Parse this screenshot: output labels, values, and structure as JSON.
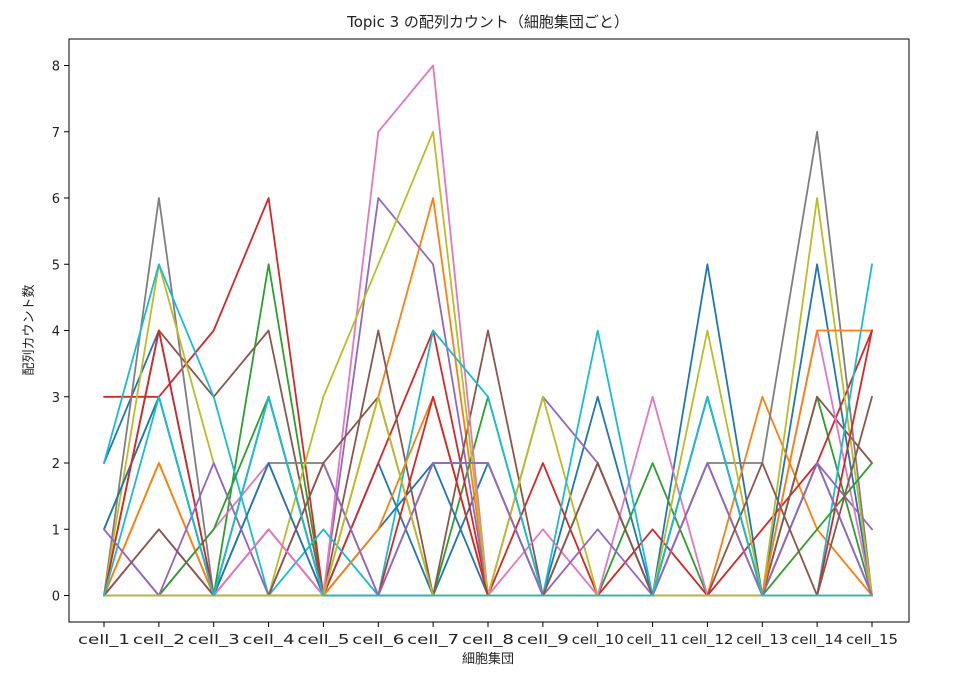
{
  "chart_data": {
    "type": "line",
    "title": "Topic 3 の配列カウント（細胞集団ごと）",
    "xlabel": "細胞集団",
    "ylabel": "配列カウント数",
    "categories": [
      "cell_1",
      "cell_2",
      "cell_3",
      "cell_4",
      "cell_5",
      "cell_6",
      "cell_7",
      "cell_8",
      "cell_9",
      "cell_10",
      "cell_11",
      "cell_12",
      "cell_13",
      "cell_14",
      "cell_15"
    ],
    "ylim": [
      -0.4,
      8.4
    ],
    "yticks": [
      0,
      1,
      2,
      3,
      4,
      5,
      6,
      7,
      8
    ],
    "grid": false,
    "legend": "none",
    "series": [
      {
        "color": "#1f77b4",
        "values": [
          2,
          4,
          0,
          3,
          0,
          2,
          0,
          2,
          0,
          3,
          0,
          5,
          0,
          5,
          0
        ]
      },
      {
        "color": "#ff7f0e",
        "values": [
          0,
          2,
          0,
          0,
          0,
          3,
          6,
          0,
          0,
          0,
          0,
          0,
          3,
          1,
          0
        ]
      },
      {
        "color": "#2ca02c",
        "values": [
          1,
          3,
          0,
          5,
          0,
          0,
          0,
          3,
          0,
          0,
          2,
          0,
          0,
          3,
          0
        ]
      },
      {
        "color": "#d62728",
        "values": [
          3,
          3,
          4,
          6,
          0,
          2,
          4,
          0,
          2,
          0,
          1,
          0,
          1,
          2,
          4
        ]
      },
      {
        "color": "#9467bd",
        "values": [
          0,
          1,
          0,
          3,
          0,
          6,
          5,
          0,
          3,
          2,
          0,
          3,
          0,
          2,
          1
        ]
      },
      {
        "color": "#8c564b",
        "values": [
          0,
          4,
          3,
          4,
          0,
          4,
          0,
          4,
          0,
          2,
          0,
          2,
          0,
          3,
          2
        ]
      },
      {
        "color": "#e377c2",
        "values": [
          1,
          0,
          1,
          2,
          0,
          7,
          8,
          0,
          1,
          0,
          3,
          0,
          0,
          4,
          0
        ]
      },
      {
        "color": "#7f7f7f",
        "values": [
          0,
          6,
          0,
          2,
          2,
          0,
          2,
          2,
          0,
          0,
          0,
          2,
          2,
          7,
          0
        ]
      },
      {
        "color": "#bcbd22",
        "values": [
          0,
          5,
          2,
          0,
          3,
          5,
          7,
          0,
          3,
          0,
          0,
          4,
          0,
          6,
          0
        ]
      },
      {
        "color": "#17becf",
        "values": [
          2,
          5,
          3,
          0,
          1,
          0,
          4,
          3,
          0,
          4,
          0,
          0,
          0,
          0,
          5
        ]
      },
      {
        "color": "#1f77b4",
        "values": [
          1,
          3,
          0,
          2,
          0,
          1,
          2,
          0,
          0,
          0,
          0,
          3,
          0,
          2,
          0
        ]
      },
      {
        "color": "#ff7f0e",
        "values": [
          0,
          2,
          0,
          0,
          0,
          1,
          3,
          0,
          0,
          0,
          0,
          0,
          0,
          4,
          4
        ]
      },
      {
        "color": "#2ca02c",
        "values": [
          0,
          0,
          1,
          3,
          0,
          0,
          0,
          0,
          0,
          0,
          0,
          0,
          0,
          1,
          2
        ]
      },
      {
        "color": "#d62728",
        "values": [
          0,
          4,
          0,
          1,
          0,
          0,
          3,
          0,
          0,
          0,
          0,
          0,
          0,
          0,
          4
        ]
      },
      {
        "color": "#9467bd",
        "values": [
          1,
          0,
          2,
          0,
          2,
          0,
          2,
          2,
          0,
          1,
          0,
          2,
          0,
          2,
          0
        ]
      },
      {
        "color": "#8c564b",
        "values": [
          0,
          1,
          0,
          0,
          2,
          3,
          0,
          0,
          0,
          2,
          0,
          0,
          2,
          0,
          3
        ]
      },
      {
        "color": "#e377c2",
        "values": [
          0,
          0,
          0,
          1,
          0,
          0,
          0,
          0,
          0,
          0,
          0,
          0,
          0,
          0,
          0
        ]
      },
      {
        "color": "#7f7f7f",
        "values": [
          0,
          0,
          0,
          0,
          0,
          0,
          0,
          0,
          0,
          0,
          0,
          0,
          0,
          0,
          0
        ]
      },
      {
        "color": "#bcbd22",
        "values": [
          0,
          0,
          0,
          0,
          0,
          3,
          0,
          0,
          0,
          0,
          0,
          0,
          0,
          0,
          0
        ]
      },
      {
        "color": "#17becf",
        "values": [
          0,
          3,
          0,
          3,
          0,
          0,
          0,
          0,
          0,
          0,
          0,
          3,
          0,
          0,
          0
        ]
      }
    ]
  }
}
